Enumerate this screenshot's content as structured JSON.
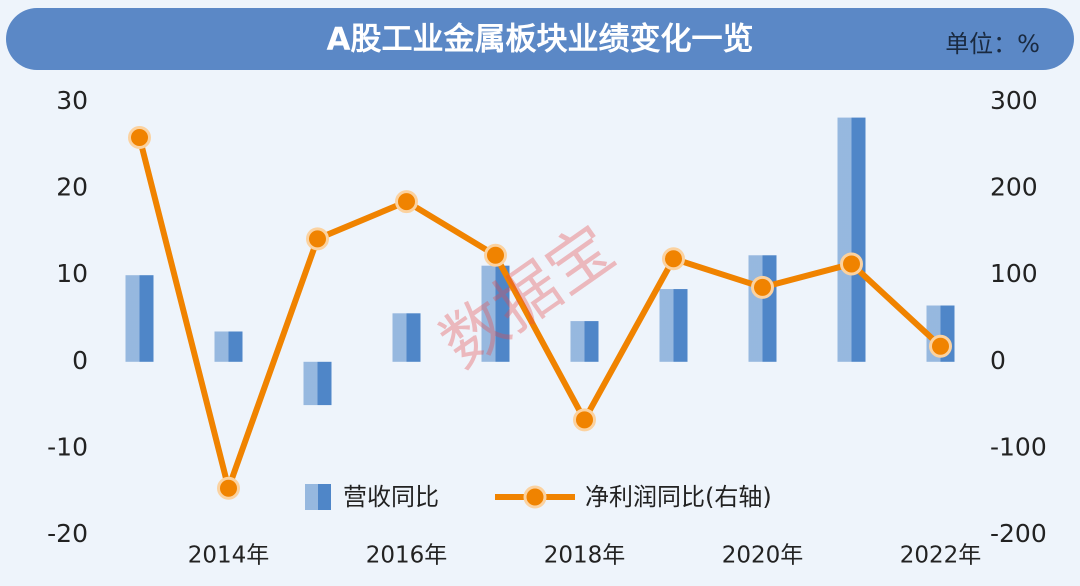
{
  "chart_data": {
    "type": "bar-line",
    "title": "A股工业金属板块业绩变化一览",
    "unit_label": "单位：%",
    "watermark": "数据宝",
    "categories": [
      null,
      "2014年",
      null,
      "2016年",
      null,
      "2018年",
      null,
      "2020年",
      null,
      "2022年"
    ],
    "series": [
      {
        "name": "营收同比",
        "type": "bar",
        "color": "#4f86c8",
        "values": [
          10,
          3.5,
          -5,
          5.6,
          11.1,
          4.7,
          8.4,
          12.3,
          28.2,
          6.5
        ]
      },
      {
        "name": "净利润同比(右轴)",
        "type": "line",
        "axis": "y2",
        "color": "#f08300",
        "values": [
          259,
          -146,
          142,
          185,
          123,
          -67,
          119,
          86,
          113,
          18
        ]
      }
    ],
    "ylim": [
      -20,
      30
    ],
    "yticks": [
      -20,
      -10,
      0,
      10,
      20,
      30
    ],
    "y2lim": [
      -200,
      300
    ],
    "y2ticks": [
      -200,
      -100,
      0,
      100,
      200,
      300
    ],
    "grid": false,
    "legend": "bottom"
  }
}
